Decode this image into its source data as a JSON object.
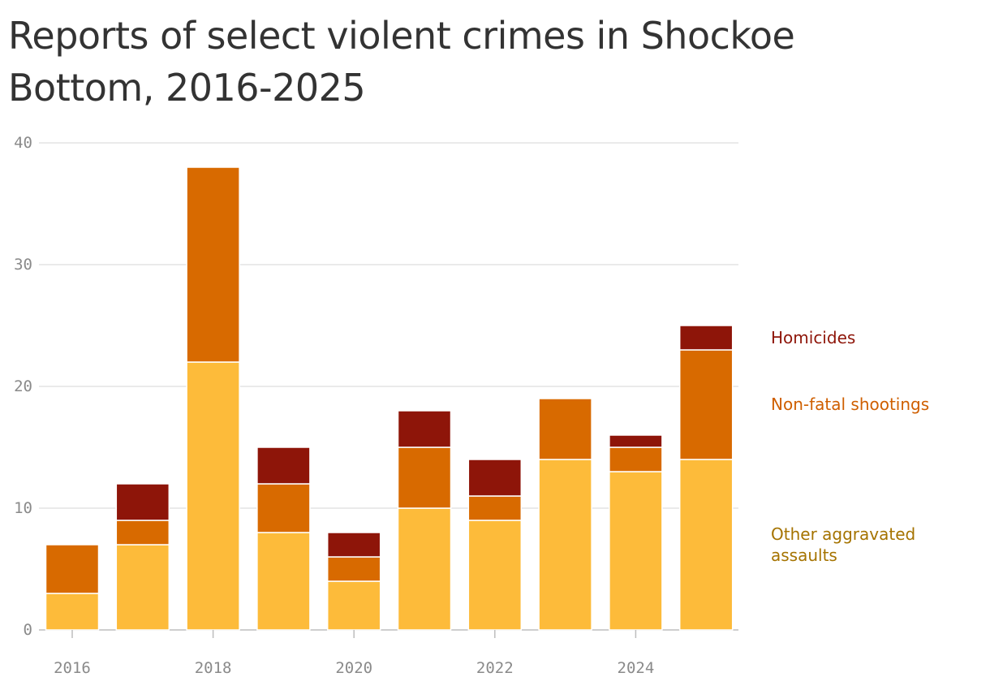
{
  "chart_data": {
    "type": "bar",
    "stacked": true,
    "title": "Reports of select violent crimes in Shockoe Bottom, 2016-2025",
    "categories": [
      "2016",
      "2017",
      "2018",
      "2019",
      "2020",
      "2021",
      "2022",
      "2023",
      "2024",
      "2025"
    ],
    "series": [
      {
        "name": "Other aggravated assaults",
        "label": "Other aggravated\nassaults",
        "color": "#fdbb3a",
        "values": [
          3,
          7,
          22,
          8,
          4,
          10,
          9,
          14,
          13,
          14
        ]
      },
      {
        "name": "Non-fatal shootings",
        "label": "Non-fatal shootings",
        "color": "#d86a00",
        "values": [
          4,
          2,
          16,
          4,
          2,
          5,
          2,
          5,
          2,
          9
        ]
      },
      {
        "name": "Homicides",
        "label": "Homicides",
        "color": "#8e1509",
        "values": [
          0,
          3,
          0,
          3,
          2,
          3,
          3,
          0,
          1,
          2
        ]
      }
    ],
    "legend_colors": {
      "Homicides": "#8e1509",
      "Non-fatal shootings": "#cf5f00",
      "Other aggravated assaults": "#a57300"
    },
    "ylim": [
      0,
      40
    ],
    "yticks": [
      0,
      10,
      20,
      30,
      40
    ],
    "xticks": [
      "2016",
      "2018",
      "2020",
      "2022",
      "2024"
    ],
    "grid": true,
    "legend_position": "right"
  }
}
